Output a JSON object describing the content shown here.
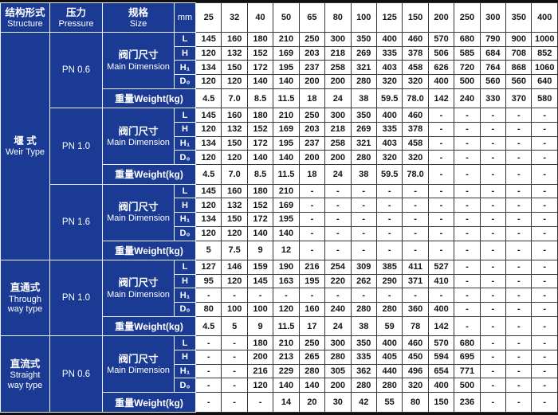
{
  "colors": {
    "blue": "#1b3a94",
    "grid_dark": "#33363b",
    "grid_light": "#eef2f9",
    "text_on_blue": "#ffffff",
    "text_on_white": "#141414"
  },
  "header": {
    "structure": {
      "zh": "结构形式",
      "en": "Structure"
    },
    "pressure": {
      "zh": "压力",
      "en": "Pressure"
    },
    "size": {
      "zh": "规格",
      "en": "Size"
    },
    "unit": "mm",
    "sizes": [
      "25",
      "32",
      "40",
      "50",
      "65",
      "80",
      "100",
      "125",
      "150",
      "200",
      "250",
      "300",
      "350",
      "400"
    ]
  },
  "labels": {
    "main_dimension": {
      "zh": "阀门尺寸",
      "en": "Main Dimension"
    },
    "weight": "重量Weight(kg)"
  },
  "groups": [
    {
      "structure": {
        "zh": "堰  式",
        "en": "Weir Type",
        "groups_span": 3
      },
      "pressure": "PN 0.6",
      "dims": [
        {
          "label": "L",
          "values": [
            "145",
            "160",
            "180",
            "210",
            "250",
            "300",
            "350",
            "400",
            "460",
            "570",
            "680",
            "790",
            "900",
            "1000"
          ]
        },
        {
          "label": "H",
          "values": [
            "120",
            "132",
            "152",
            "169",
            "203",
            "218",
            "269",
            "335",
            "378",
            "506",
            "585",
            "684",
            "708",
            "852"
          ]
        },
        {
          "label": "H₁",
          "values": [
            "134",
            "150",
            "172",
            "195",
            "237",
            "258",
            "321",
            "403",
            "458",
            "626",
            "720",
            "764",
            "868",
            "1060"
          ]
        },
        {
          "label": "D₀",
          "values": [
            "120",
            "120",
            "140",
            "140",
            "200",
            "200",
            "280",
            "320",
            "320",
            "400",
            "500",
            "560",
            "560",
            "640"
          ]
        }
      ],
      "weight": [
        "4.5",
        "7.0",
        "8.5",
        "11.5",
        "18",
        "24",
        "38",
        "59.5",
        "78.0",
        "142",
        "240",
        "330",
        "370",
        "580"
      ]
    },
    {
      "pressure": "PN 1.0",
      "dims": [
        {
          "label": "L",
          "values": [
            "145",
            "160",
            "180",
            "210",
            "250",
            "300",
            "350",
            "400",
            "460",
            "-",
            "-",
            "-",
            "-",
            "-"
          ]
        },
        {
          "label": "H",
          "values": [
            "120",
            "132",
            "152",
            "169",
            "203",
            "218",
            "269",
            "335",
            "378",
            "-",
            "-",
            "-",
            "-",
            "-"
          ]
        },
        {
          "label": "H₁",
          "values": [
            "134",
            "150",
            "172",
            "195",
            "237",
            "258",
            "321",
            "403",
            "458",
            "-",
            "-",
            "-",
            "-",
            "-"
          ]
        },
        {
          "label": "D₀",
          "values": [
            "120",
            "120",
            "140",
            "140",
            "200",
            "200",
            "280",
            "320",
            "320",
            "-",
            "-",
            "-",
            "-",
            "-"
          ]
        }
      ],
      "weight": [
        "4.5",
        "7.0",
        "8.5",
        "11.5",
        "18",
        "24",
        "38",
        "59.5",
        "78.0",
        "-",
        "-",
        "-",
        "-",
        "-"
      ]
    },
    {
      "pressure": "PN 1.6",
      "dims": [
        {
          "label": "L",
          "values": [
            "145",
            "160",
            "180",
            "210",
            "-",
            "-",
            "-",
            "-",
            "-",
            "-",
            "-",
            "-",
            "-",
            "-"
          ]
        },
        {
          "label": "H",
          "values": [
            "120",
            "132",
            "152",
            "169",
            "-",
            "-",
            "-",
            "-",
            "-",
            "-",
            "-",
            "-",
            "-",
            "-"
          ]
        },
        {
          "label": "H₁",
          "values": [
            "134",
            "150",
            "172",
            "195",
            "-",
            "-",
            "-",
            "-",
            "-",
            "-",
            "-",
            "-",
            "-",
            "-"
          ]
        },
        {
          "label": "D₀",
          "values": [
            "120",
            "120",
            "140",
            "140",
            "-",
            "-",
            "-",
            "-",
            "-",
            "-",
            "-",
            "-",
            "-",
            "-"
          ]
        }
      ],
      "weight": [
        "5",
        "7.5",
        "9",
        "12",
        "-",
        "-",
        "-",
        "-",
        "-",
        "-",
        "-",
        "-",
        "-",
        "-"
      ]
    },
    {
      "structure": {
        "zh": "直通式",
        "en": "Through\nway type",
        "groups_span": 1
      },
      "pressure": "PN 1.0",
      "dims": [
        {
          "label": "L",
          "values": [
            "127",
            "146",
            "159",
            "190",
            "216",
            "254",
            "309",
            "385",
            "411",
            "527",
            "-",
            "-",
            "-",
            "-"
          ]
        },
        {
          "label": "H",
          "values": [
            "95",
            "120",
            "145",
            "163",
            "195",
            "220",
            "262",
            "290",
            "371",
            "410",
            "-",
            "-",
            "-",
            "-"
          ]
        },
        {
          "label": "H₁",
          "values": [
            "-",
            "-",
            "-",
            "-",
            "-",
            "-",
            "-",
            "-",
            "-",
            "-",
            "-",
            "-",
            "-",
            "-"
          ]
        },
        {
          "label": "D₀",
          "values": [
            "80",
            "100",
            "100",
            "120",
            "160",
            "240",
            "280",
            "280",
            "360",
            "400",
            "-",
            "-",
            "-",
            "-"
          ]
        }
      ],
      "weight": [
        "4.5",
        "5",
        "9",
        "11.5",
        "17",
        "24",
        "38",
        "59",
        "78",
        "142",
        "-",
        "-",
        "-",
        "-"
      ]
    },
    {
      "structure": {
        "zh": "直流式",
        "en": "Straight\nway type",
        "groups_span": 1
      },
      "pressure": "PN 0.6",
      "dims": [
        {
          "label": "L",
          "values": [
            "-",
            "-",
            "180",
            "210",
            "250",
            "300",
            "350",
            "400",
            "460",
            "570",
            "680",
            "-",
            "-",
            "-"
          ]
        },
        {
          "label": "H",
          "values": [
            "-",
            "-",
            "200",
            "213",
            "265",
            "280",
            "335",
            "405",
            "450",
            "594",
            "695",
            "-",
            "-",
            "-"
          ]
        },
        {
          "label": "H₁",
          "values": [
            "-",
            "-",
            "216",
            "229",
            "280",
            "305",
            "362",
            "440",
            "496",
            "654",
            "771",
            "-",
            "-",
            "-"
          ]
        },
        {
          "label": "D₀",
          "values": [
            "-",
            "-",
            "120",
            "140",
            "140",
            "200",
            "280",
            "280",
            "320",
            "400",
            "500",
            "-",
            "-",
            "-"
          ]
        }
      ],
      "weight": [
        "-",
        "-",
        "-",
        "14",
        "20",
        "30",
        "42",
        "55",
        "80",
        "150",
        "236",
        "-",
        "-",
        "-"
      ]
    }
  ]
}
